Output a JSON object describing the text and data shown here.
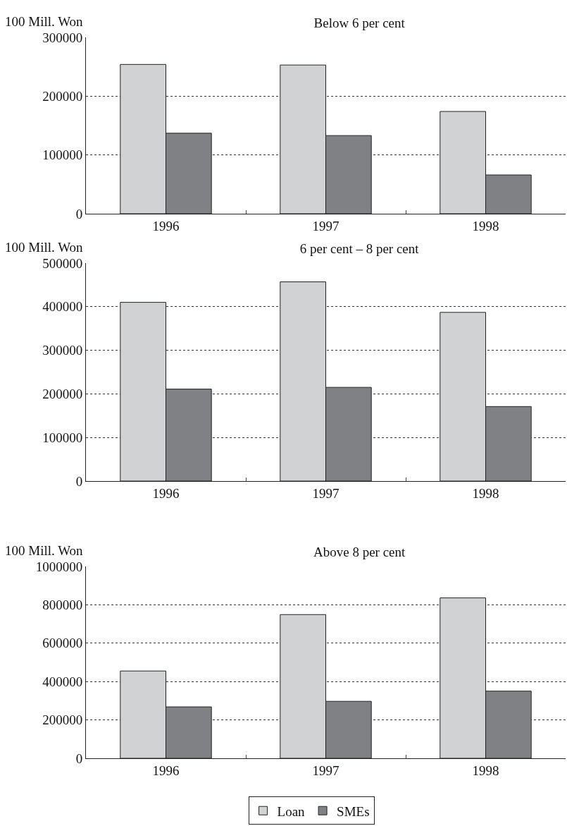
{
  "chart_data": [
    {
      "type": "bar",
      "title": "Below 6 per cent",
      "ylabel": "100 Mill. Won",
      "categories": [
        "1996",
        "1997",
        "1998"
      ],
      "series": [
        {
          "color": "#d1d2d4",
          "values": [
            254000,
            253000,
            174000
          ]
        },
        {
          "color": "#808184",
          "values": [
            137000,
            133000,
            66000
          ]
        }
      ],
      "ylim": [
        0,
        300000
      ],
      "yticks": [
        0,
        100000,
        200000,
        300000
      ],
      "grid": "y",
      "legend": false
    },
    {
      "type": "bar",
      "title": "6 per cent – 8 per cent",
      "ylabel": "100 Mill. Won",
      "categories": [
        "1996",
        "1997",
        "1998"
      ],
      "series": [
        {
          "color": "#d1d2d4",
          "values": [
            410000,
            457000,
            387000
          ]
        },
        {
          "color": "#808184",
          "values": [
            211000,
            215000,
            171000
          ]
        }
      ],
      "ylim": [
        0,
        500000
      ],
      "yticks": [
        0,
        100000,
        200000,
        300000,
        400000,
        500000
      ],
      "grid": "y",
      "legend": false
    },
    {
      "type": "bar",
      "title": "Above 8 per cent",
      "ylabel": "100 Mill. Won",
      "categories": [
        "1996",
        "1997",
        "1998"
      ],
      "series": [
        {
          "name": "Loan",
          "color": "#d1d2d4",
          "values": [
            455000,
            749000,
            836000
          ]
        },
        {
          "name": "SMEs",
          "color": "#808184",
          "values": [
            268000,
            297000,
            350000
          ]
        }
      ],
      "ylim": [
        0,
        1000000
      ],
      "yticks": [
        0,
        200000,
        400000,
        600000,
        800000,
        1000000
      ],
      "grid": "y",
      "legend": "bottom"
    }
  ]
}
